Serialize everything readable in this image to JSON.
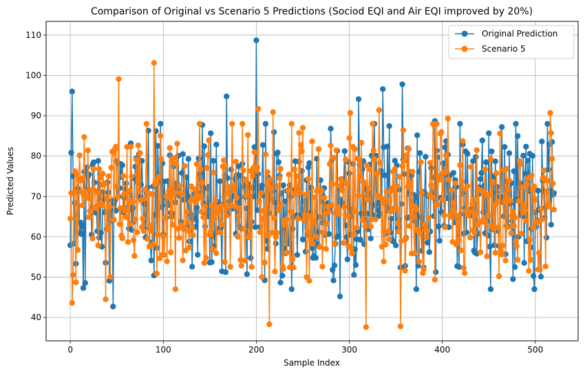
{
  "chart_data": {
    "type": "line",
    "title": "Comparison of Original vs Scenario 5 Predictions (Sociod EQI and Air EQI improved by 20%)",
    "xlabel": "Sample Index",
    "ylabel": "Predicted Values",
    "xlim": [
      -26,
      546
    ],
    "ylim": [
      34.2,
      113.4
    ],
    "xticks": [
      0,
      100,
      200,
      300,
      400,
      500
    ],
    "yticks": [
      40,
      50,
      60,
      70,
      80,
      90,
      100,
      110
    ],
    "xtick_labels": [
      "0",
      "100",
      "200",
      "300",
      "400",
      "500"
    ],
    "ytick_labels": [
      "40",
      "50",
      "60",
      "70",
      "80",
      "90",
      "100",
      "110"
    ],
    "grid": true,
    "legend_position": "top-right",
    "markers": "circle",
    "n_points": 521,
    "series": [
      {
        "name": "Original Prediction",
        "color": "#1f77b4",
        "notable_points": [
          [
            0,
            57.9
          ],
          [
            2,
            96.0
          ],
          [
            14,
            47.3
          ],
          [
            46,
            42.7
          ],
          [
            90,
            50.4
          ],
          [
            168,
            94.8
          ],
          [
            200,
            108.7
          ],
          [
            290,
            45.2
          ],
          [
            310,
            94.1
          ],
          [
            336,
            96.6
          ],
          [
            357,
            97.8
          ],
          [
            392,
            88.7
          ],
          [
            464,
            87.2
          ],
          [
            476,
            49.5
          ],
          [
            519,
            70.4
          ]
        ],
        "baseline": 68,
        "spread": 9
      },
      {
        "name": "Scenario 5",
        "color": "#ff7f0e",
        "notable_points": [
          [
            0,
            64.5
          ],
          [
            2,
            43.6
          ],
          [
            38,
            44.5
          ],
          [
            52,
            99.1
          ],
          [
            90,
            103.1
          ],
          [
            202,
            91.7
          ],
          [
            214,
            38.3
          ],
          [
            218,
            90.9
          ],
          [
            301,
            90.7
          ],
          [
            318,
            37.6
          ],
          [
            332,
            91.4
          ],
          [
            355,
            37.8
          ],
          [
            406,
            89.3
          ],
          [
            516,
            90.7
          ],
          [
            519,
            73.2
          ]
        ],
        "baseline": 68,
        "spread": 9
      }
    ]
  }
}
